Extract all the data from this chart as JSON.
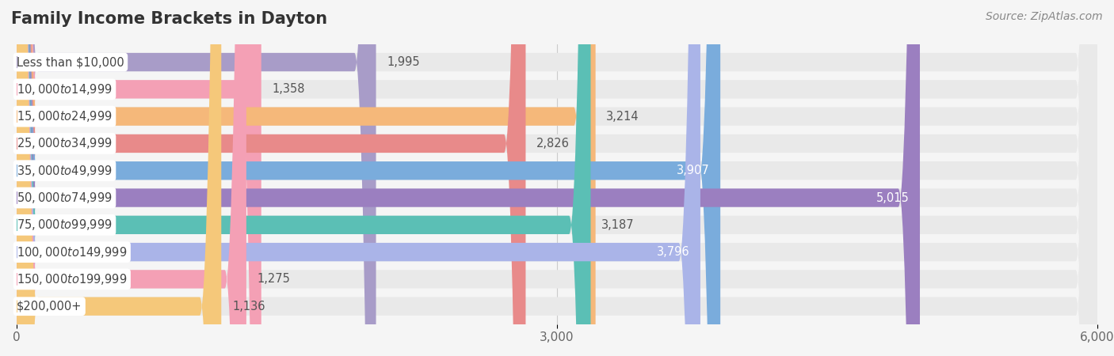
{
  "title": "Family Income Brackets in Dayton",
  "source": "Source: ZipAtlas.com",
  "categories": [
    "Less than $10,000",
    "$10,000 to $14,999",
    "$15,000 to $24,999",
    "$25,000 to $34,999",
    "$35,000 to $49,999",
    "$50,000 to $74,999",
    "$75,000 to $99,999",
    "$100,000 to $149,999",
    "$150,000 to $199,999",
    "$200,000+"
  ],
  "values": [
    1995,
    1358,
    3214,
    2826,
    3907,
    5015,
    3187,
    3796,
    1275,
    1136
  ],
  "bar_colors": [
    "#a89cc8",
    "#f4a0b5",
    "#f5b87a",
    "#e88a8a",
    "#7aacdc",
    "#9b7fc0",
    "#5bbfb5",
    "#aab4e8",
    "#f4a0b5",
    "#f5c87a"
  ],
  "bar_label_colors": [
    "#555555",
    "#555555",
    "#555555",
    "#555555",
    "#ffffff",
    "#ffffff",
    "#555555",
    "#ffffff",
    "#555555",
    "#555555"
  ],
  "xlim": [
    0,
    6000
  ],
  "xticks": [
    0,
    3000,
    6000
  ],
  "background_color": "#f5f5f5",
  "bar_background_color": "#e9e9e9",
  "title_fontsize": 15,
  "label_fontsize": 10.5,
  "tick_fontsize": 11,
  "source_fontsize": 10
}
